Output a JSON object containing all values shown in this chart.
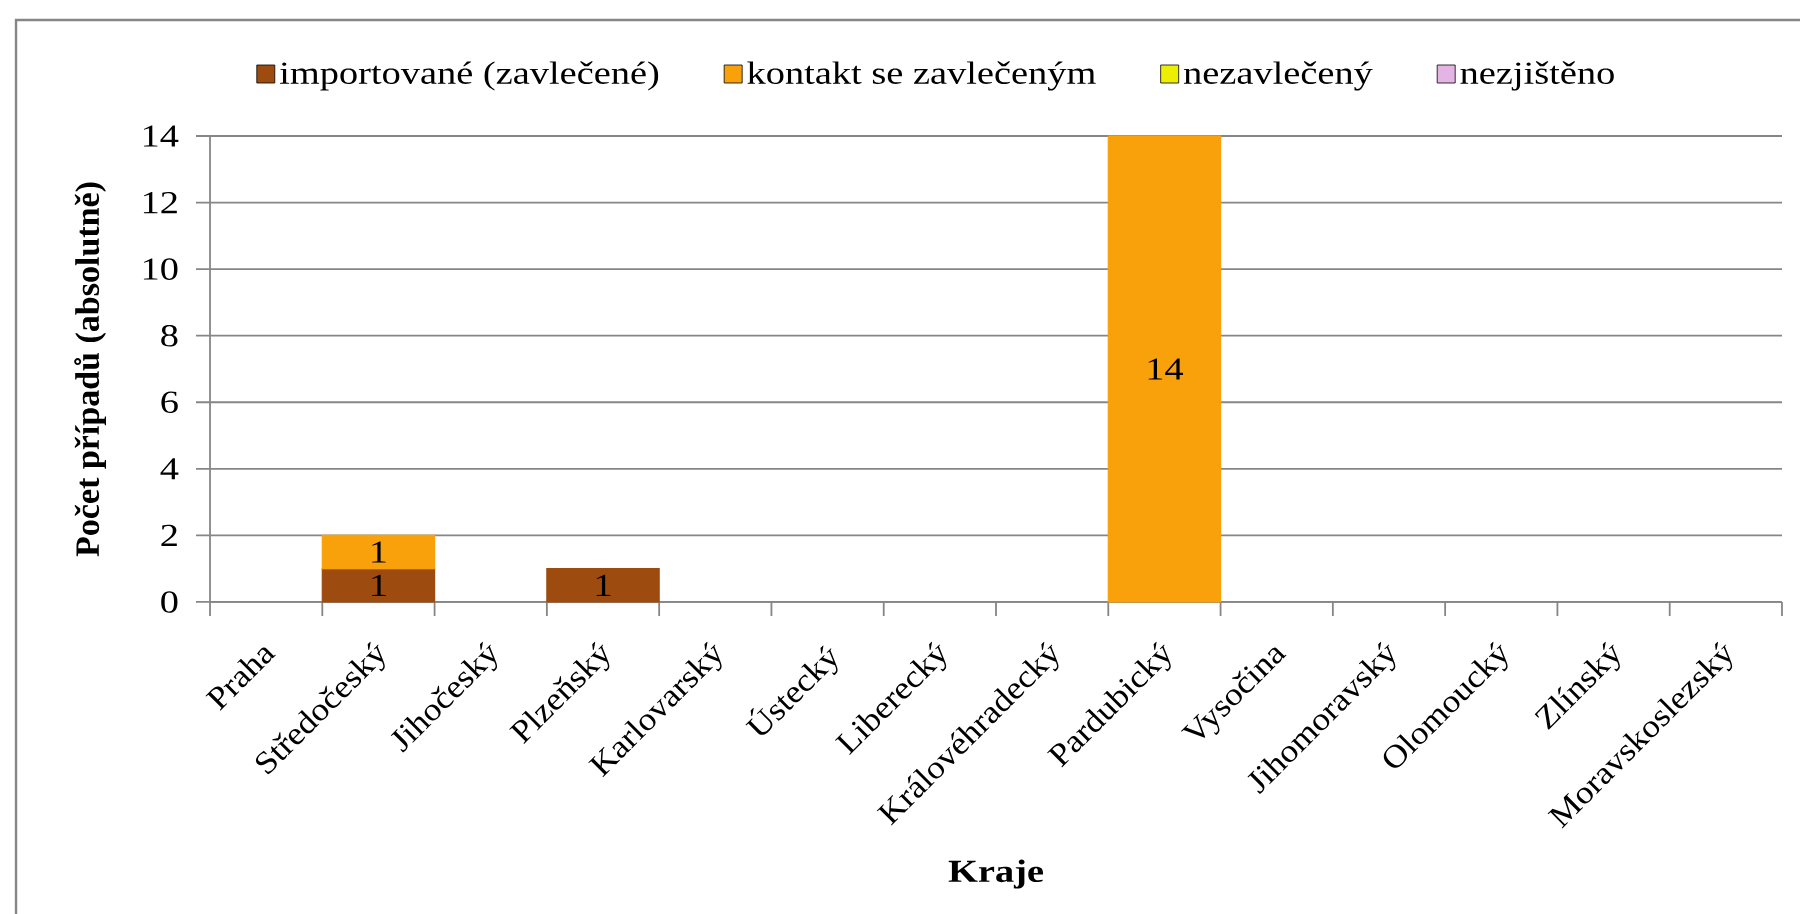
{
  "chart_data": {
    "type": "bar",
    "stacked": true,
    "xlabel": "Kraje",
    "ylabel": "Počet případů (absolutně)",
    "categories": [
      "Praha",
      "Středočeský",
      "Jihočeský",
      "Plzeňský",
      "Karlovarský",
      "Ústecký",
      "Liberecký",
      "Královéhradecký",
      "Pardubický",
      "Vysočina",
      "Jihomoravský",
      "Olomoucký",
      "Zlínský",
      "Moravskoslezský"
    ],
    "series": [
      {
        "name": "importované (zavlečené)",
        "color": "#9e4b0f",
        "values": [
          null,
          1,
          null,
          1,
          null,
          null,
          null,
          null,
          null,
          null,
          null,
          null,
          null,
          null
        ],
        "value_labels": [
          null,
          "1",
          null,
          "1",
          null,
          null,
          null,
          null,
          null,
          null,
          null,
          null,
          null,
          null
        ]
      },
      {
        "name": "kontakt se zavlečeným",
        "color": "#f9a10a",
        "values": [
          null,
          1,
          null,
          null,
          null,
          null,
          null,
          null,
          14,
          null,
          null,
          null,
          null,
          null
        ],
        "value_labels": [
          null,
          "1",
          null,
          null,
          null,
          null,
          null,
          null,
          "14",
          null,
          null,
          null,
          null,
          null
        ]
      },
      {
        "name": "nezavlečený",
        "color": "#eeee00",
        "values": [
          null,
          null,
          null,
          null,
          null,
          null,
          null,
          null,
          null,
          null,
          null,
          null,
          null,
          null
        ]
      },
      {
        "name": "nezjištěno",
        "color": "#e4b4e4",
        "values": [
          null,
          null,
          null,
          null,
          null,
          null,
          null,
          null,
          null,
          null,
          null,
          null,
          null,
          null
        ]
      }
    ],
    "ylim": [
      0,
      14
    ],
    "yticks": [
      0,
      2,
      4,
      6,
      8,
      10,
      12,
      14
    ],
    "grid": "y",
    "legend": "top"
  }
}
